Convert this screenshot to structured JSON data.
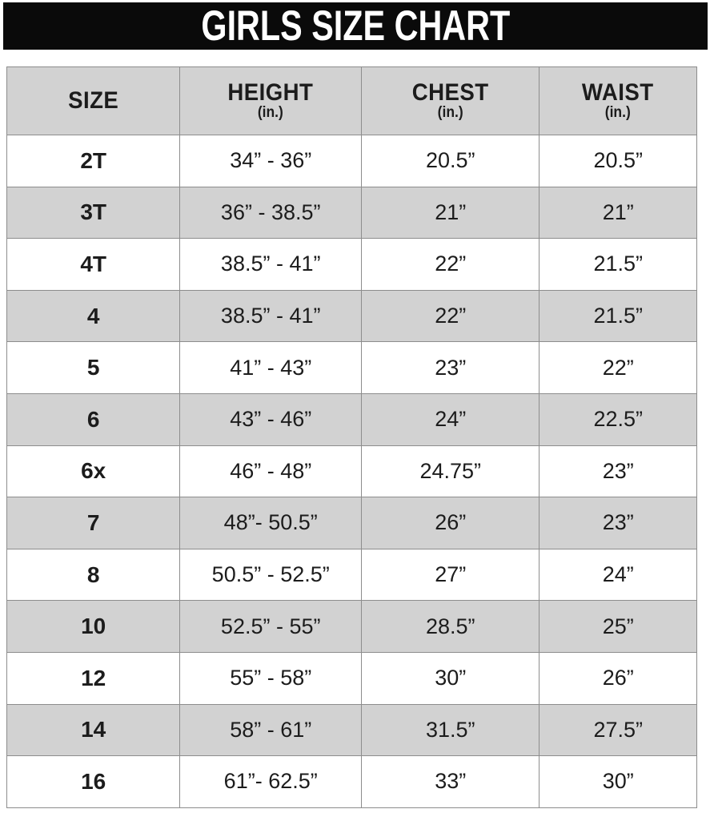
{
  "title": "GIRLS SIZE CHART",
  "colors": {
    "banner_bg": "#0a0a0a",
    "banner_text": "#ffffff",
    "row_alt_bg": "#d2d2d2",
    "row_bg": "#ffffff",
    "border_color": "#8d8d8d",
    "text_color": "#1c1c1c"
  },
  "header": {
    "columns": [
      {
        "label": "SIZE",
        "sub": ""
      },
      {
        "label": "HEIGHT",
        "sub": "(in.)"
      },
      {
        "label": "CHEST",
        "sub": "(in.)"
      },
      {
        "label": "WAIST",
        "sub": "(in.)"
      }
    ]
  },
  "chart_data": {
    "type": "table",
    "title": "GIRLS SIZE CHART",
    "columns": [
      "SIZE",
      "HEIGHT (in.)",
      "CHEST (in.)",
      "WAIST (in.)"
    ],
    "rows": [
      [
        "2T",
        "34” - 36”",
        "20.5”",
        "20.5”"
      ],
      [
        "3T",
        "36” - 38.5”",
        "21”",
        "21”"
      ],
      [
        "4T",
        "38.5” - 41”",
        "22”",
        "21.5”"
      ],
      [
        "4",
        "38.5” - 41”",
        "22”",
        "21.5”"
      ],
      [
        "5",
        "41” - 43”",
        "23”",
        "22”"
      ],
      [
        "6",
        "43” - 46”",
        "24”",
        "22.5”"
      ],
      [
        "6x",
        "46” - 48”",
        "24.75”",
        "23”"
      ],
      [
        "7",
        "48”- 50.5”",
        "26”",
        "23”"
      ],
      [
        "8",
        "50.5” - 52.5”",
        "27”",
        "24”"
      ],
      [
        "10",
        "52.5” - 55”",
        "28.5”",
        "25”"
      ],
      [
        "12",
        "55” - 58”",
        "30”",
        "26”"
      ],
      [
        "14",
        "58” - 61”",
        "31.5”",
        "27.5”"
      ],
      [
        "16",
        "61”- 62.5”",
        "33”",
        "30”"
      ]
    ],
    "layout": {
      "banner": "black bar with white centered title at top",
      "row_striping": "odd data rows white, even data rows light gray, header gray",
      "grid": true
    }
  }
}
